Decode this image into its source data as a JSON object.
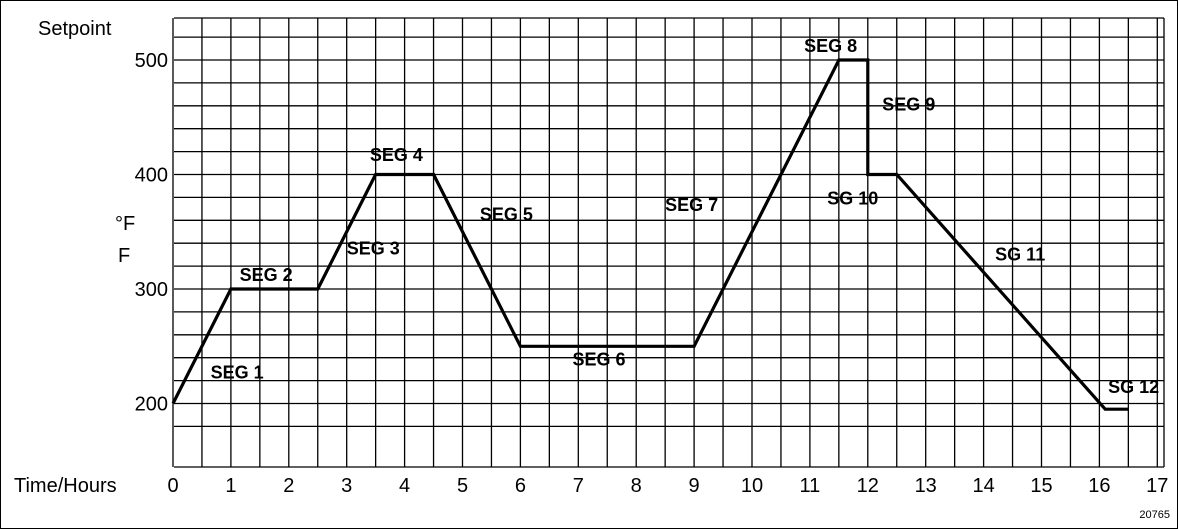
{
  "chart_data": {
    "type": "line",
    "title": "",
    "ylabel_top": "Setpoint",
    "ylabel_unit_line1": "°F",
    "ylabel_unit_line2": "F",
    "xlabel": "Time/Hours",
    "figure_number": "20765",
    "grid": true,
    "xlim": [
      0,
      17
    ],
    "ylim": [
      170,
      530
    ],
    "x_ticks": [
      0,
      1,
      2,
      3,
      4,
      5,
      6,
      7,
      8,
      9,
      10,
      11,
      12,
      13,
      14,
      15,
      16,
      17
    ],
    "x_tick_labels": [
      "0",
      "1",
      "2",
      "3",
      "4",
      "5",
      "6",
      "7",
      "8",
      "9",
      "10",
      "11",
      "12",
      "13",
      "14",
      "15",
      "16",
      "17"
    ],
    "y_ticks": [
      200,
      300,
      400,
      500
    ],
    "y_tick_labels": [
      "200",
      "300",
      "400",
      "500"
    ],
    "series": [
      {
        "x": [
          0,
          1,
          2.5,
          3.5,
          4.5,
          6,
          9,
          11.5,
          12,
          12,
          12.5,
          16.1,
          16.5
        ],
        "y": [
          200,
          300,
          300,
          400,
          400,
          250,
          250,
          500,
          500,
          400,
          400,
          195,
          195
        ]
      }
    ],
    "annotations": [
      {
        "text": "SEG 1",
        "x": 0.65,
        "y": 222
      },
      {
        "text": "SEG 2",
        "x": 1.15,
        "y": 307
      },
      {
        "text": "SEG 3",
        "x": 3.0,
        "y": 330
      },
      {
        "text": "SEG 4",
        "x": 3.4,
        "y": 412
      },
      {
        "text": "SEG 5",
        "x": 5.3,
        "y": 360
      },
      {
        "text": "SEG 6",
        "x": 6.9,
        "y": 233
      },
      {
        "text": "SEG 7",
        "x": 8.5,
        "y": 368
      },
      {
        "text": "SEG 8",
        "x": 10.9,
        "y": 507
      },
      {
        "text": "SEG 9",
        "x": 12.25,
        "y": 456
      },
      {
        "text": "SG 10",
        "x": 11.3,
        "y": 374
      },
      {
        "text": "SG 11",
        "x": 14.2,
        "y": 325
      },
      {
        "text": "SG 12",
        "x": 16.15,
        "y": 209
      }
    ]
  }
}
